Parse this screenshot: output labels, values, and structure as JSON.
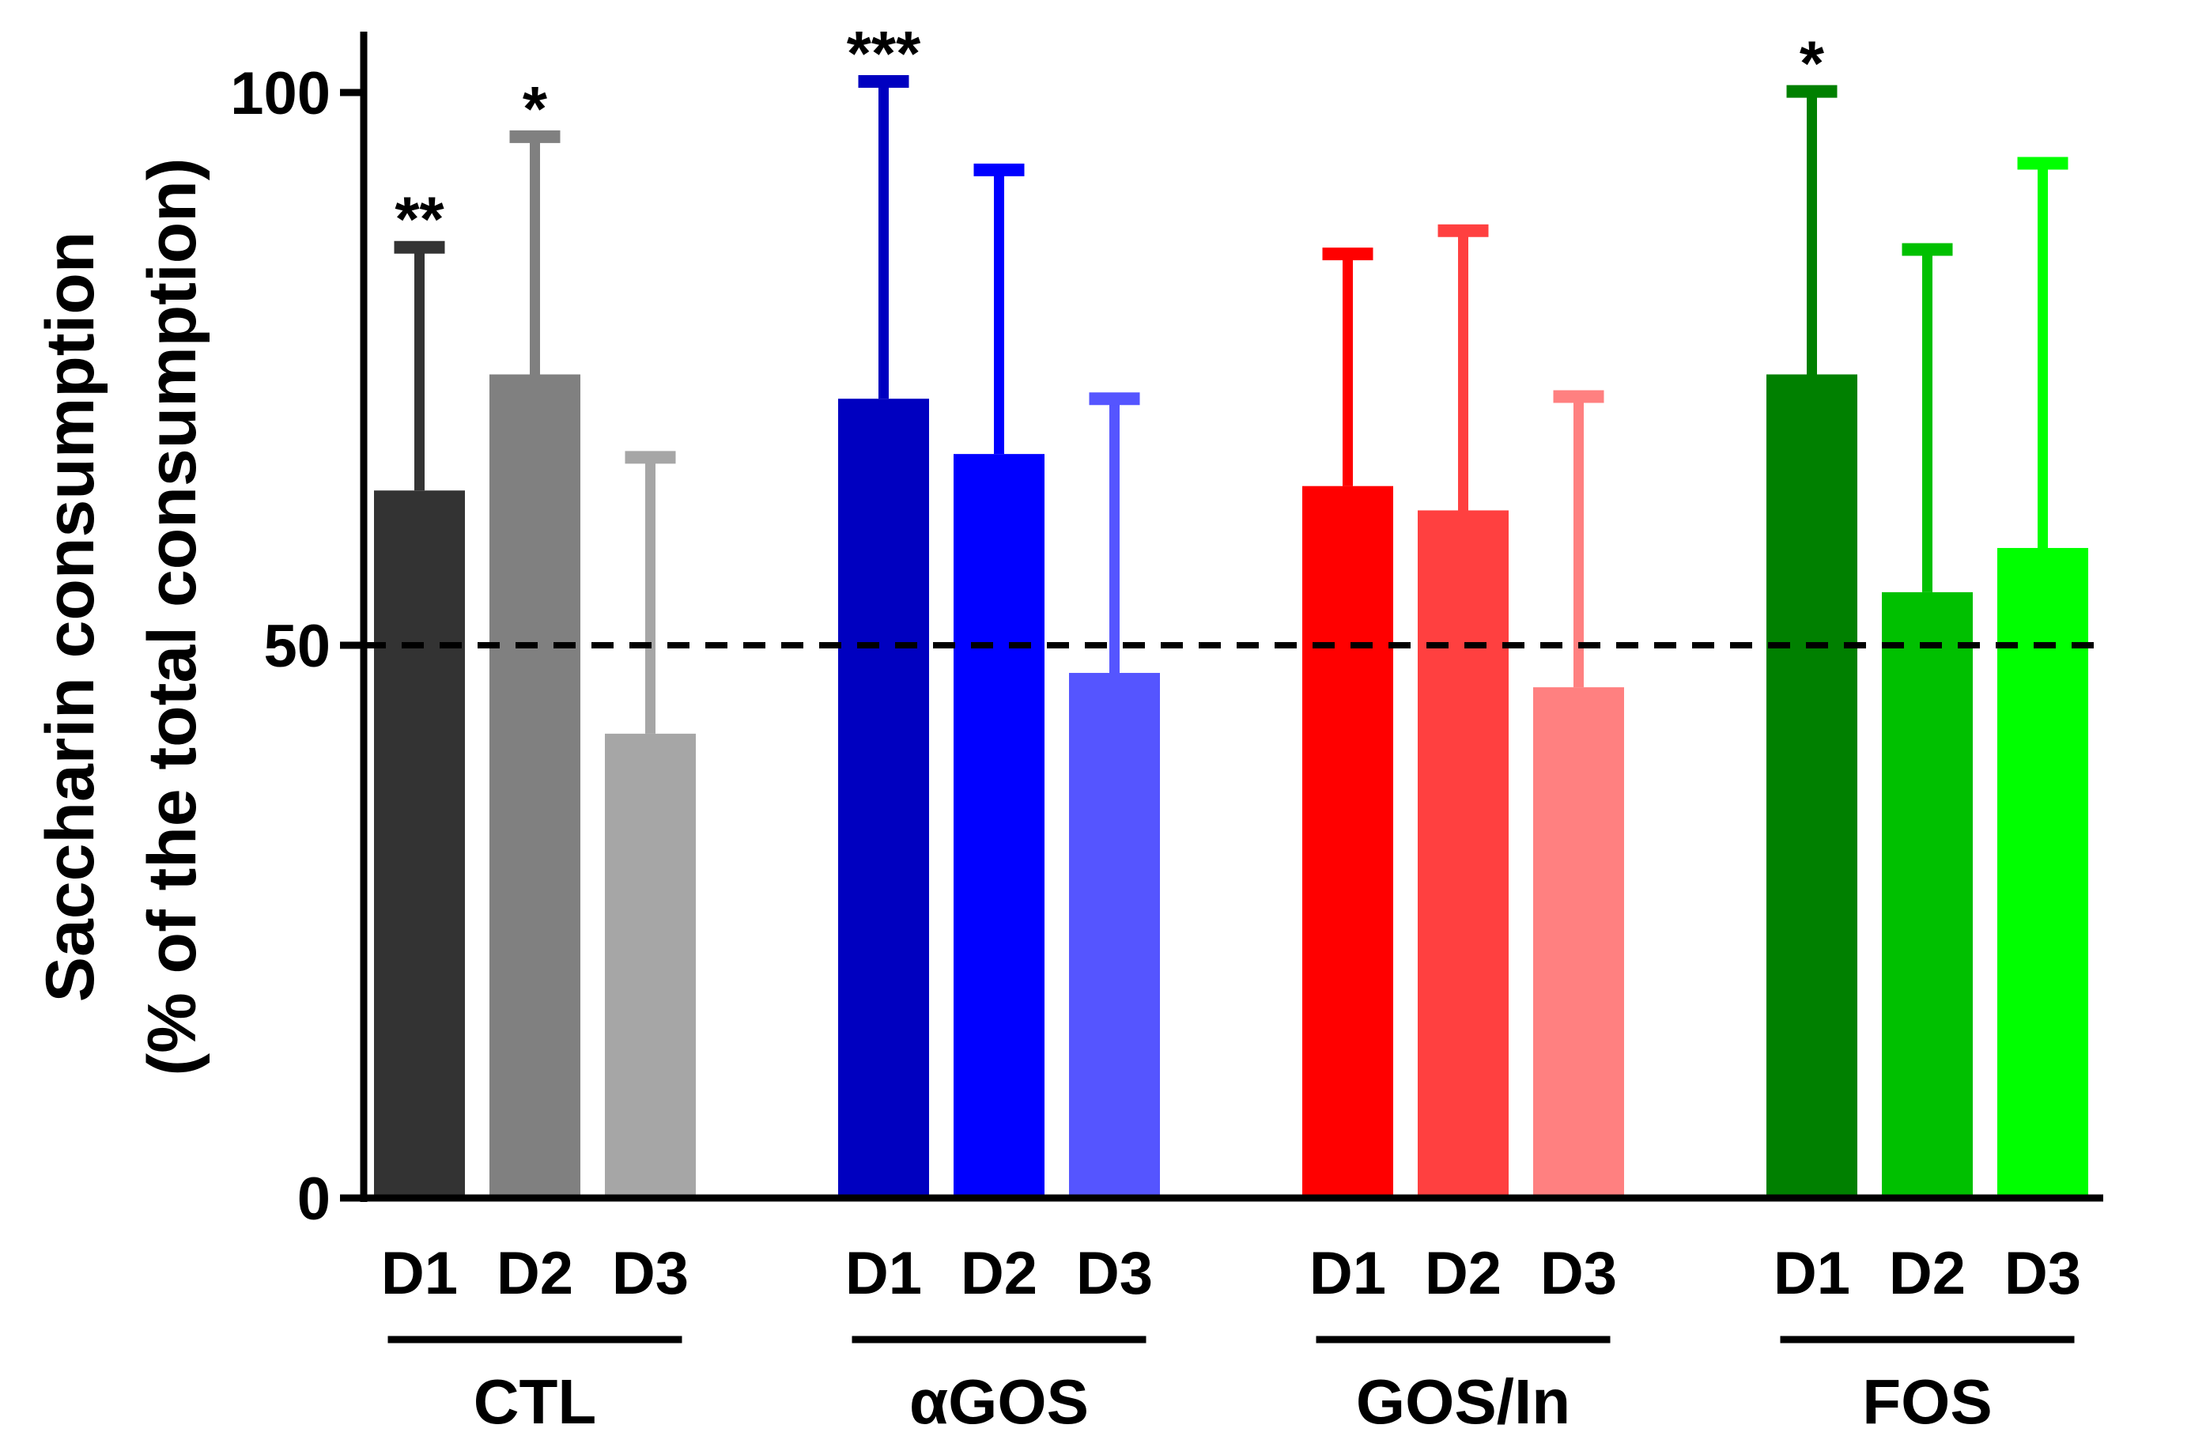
{
  "chart_data": {
    "type": "bar",
    "title": "",
    "xlabel": "",
    "ylabel_line1": "Saccharin consumption",
    "ylabel_line2": "(% of the total consumption)",
    "ylim": [
      0,
      100
    ],
    "yticks": [
      "0",
      "50",
      "100"
    ],
    "reference_line": {
      "value": 50,
      "style": "dashed"
    },
    "groups": [
      {
        "name": "CTL",
        "bars": [
          {
            "label": "D1",
            "value": 64,
            "error": 22,
            "color": "#333333",
            "significance": "**"
          },
          {
            "label": "D2",
            "value": 74.5,
            "error": 21.5,
            "color": "#808080",
            "significance": "*"
          },
          {
            "label": "D3",
            "value": 42,
            "error": 25,
            "color": "#a6a6a6",
            "significance": ""
          }
        ]
      },
      {
        "name": "αGOS",
        "bars": [
          {
            "label": "D1",
            "value": 72.3,
            "error": 28.7,
            "color": "#0000c0",
            "significance": "***"
          },
          {
            "label": "D2",
            "value": 67.3,
            "error": 25.7,
            "color": "#0000ff",
            "significance": ""
          },
          {
            "label": "D3",
            "value": 47.5,
            "error": 24.8,
            "color": "#5555ff",
            "significance": ""
          }
        ]
      },
      {
        "name": "GOS/In",
        "bars": [
          {
            "label": "D1",
            "value": 64.4,
            "error": 21,
            "color": "#ff0000",
            "significance": ""
          },
          {
            "label": "D2",
            "value": 62.2,
            "error": 25.3,
            "color": "#ff4040",
            "significance": ""
          },
          {
            "label": "D3",
            "value": 46.2,
            "error": 26.3,
            "color": "#ff8080",
            "significance": ""
          }
        ]
      },
      {
        "name": "FOS",
        "bars": [
          {
            "label": "D1",
            "value": 74.5,
            "error": 25.6,
            "color": "#008000",
            "significance": "*"
          },
          {
            "label": "D2",
            "value": 54.8,
            "error": 31,
            "color": "#00c000",
            "significance": ""
          },
          {
            "label": "D3",
            "value": 58.8,
            "error": 34.8,
            "color": "#00ff00",
            "significance": ""
          }
        ]
      }
    ]
  }
}
